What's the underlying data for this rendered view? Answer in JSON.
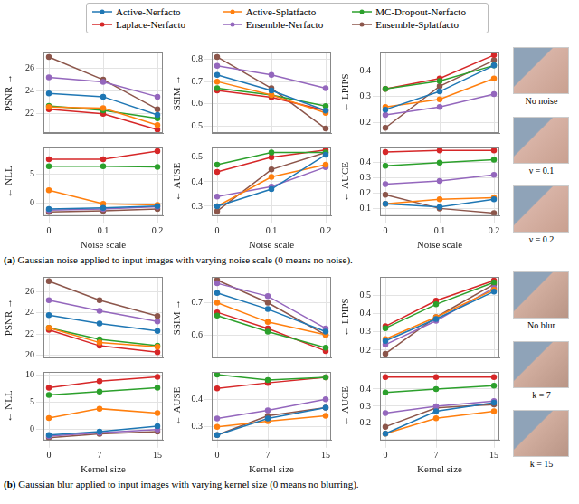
{
  "chart_data": [
    {
      "type": "line",
      "y_label": "PSNR →",
      "x": [
        0,
        0.1,
        0.2
      ],
      "xlim": [
        -0.01,
        0.21
      ],
      "xticks": [
        0,
        0.1,
        0.2
      ],
      "ylim": [
        20.3,
        27.4
      ],
      "yticks": [
        22,
        24,
        26
      ],
      "grid": true,
      "marker": "circle",
      "tick_labels": "y",
      "legend": "top",
      "series": [
        {
          "name": "Active-Nerfacto",
          "color": "#1f77b4",
          "values": [
            23.8,
            23.5,
            21.9
          ]
        },
        {
          "name": "Active-Splatfacto",
          "color": "#ff7f0e",
          "values": [
            22.6,
            22.5,
            21.0
          ]
        },
        {
          "name": "MC-Dropout-Nerfacto",
          "color": "#2ca02c",
          "values": [
            22.7,
            22.3,
            21.6
          ]
        },
        {
          "name": "Laplace-Nerfacto",
          "color": "#d62728",
          "values": [
            22.4,
            22.0,
            20.6
          ]
        },
        {
          "name": "Ensemble-Nerfacto",
          "color": "#9467bd",
          "values": [
            25.2,
            24.8,
            23.5
          ]
        },
        {
          "name": "Ensemble-Splatfacto",
          "color": "#8c564b",
          "values": [
            27.0,
            25.0,
            22.4
          ]
        }
      ]
    },
    {
      "type": "line",
      "y_label": "SSIM →",
      "x": [
        0,
        0.1,
        0.2
      ],
      "xlim": [
        -0.01,
        0.21
      ],
      "xticks": [
        0,
        0.1,
        0.2
      ],
      "ylim": [
        0.47,
        0.83
      ],
      "yticks": [
        0.5,
        0.6,
        0.7,
        0.8
      ],
      "grid": true,
      "marker": "circle",
      "tick_labels": "y",
      "series": [
        {
          "name": "Active-Nerfacto",
          "color": "#1f77b4",
          "values": [
            0.73,
            0.66,
            0.57
          ]
        },
        {
          "name": "Active-Splatfacto",
          "color": "#ff7f0e",
          "values": [
            0.7,
            0.64,
            0.56
          ]
        },
        {
          "name": "MC-Dropout-Nerfacto",
          "color": "#2ca02c",
          "values": [
            0.67,
            0.64,
            0.59
          ]
        },
        {
          "name": "Laplace-Nerfacto",
          "color": "#d62728",
          "values": [
            0.66,
            0.63,
            0.57
          ]
        },
        {
          "name": "Ensemble-Nerfacto",
          "color": "#9467bd",
          "values": [
            0.77,
            0.73,
            0.67
          ]
        },
        {
          "name": "Ensemble-Splatfacto",
          "color": "#8c564b",
          "values": [
            0.81,
            0.67,
            0.49
          ]
        }
      ]
    },
    {
      "type": "line",
      "y_label": "← LPIPS",
      "x": [
        0,
        0.1,
        0.2
      ],
      "xlim": [
        -0.01,
        0.21
      ],
      "xticks": [
        0,
        0.1,
        0.2
      ],
      "ylim": [
        0.16,
        0.47
      ],
      "yticks": [
        0.2,
        0.3,
        0.4
      ],
      "grid": true,
      "marker": "circle",
      "tick_labels": "y",
      "series": [
        {
          "name": "Active-Nerfacto",
          "color": "#1f77b4",
          "values": [
            0.25,
            0.32,
            0.42
          ]
        },
        {
          "name": "Active-Splatfacto",
          "color": "#ff7f0e",
          "values": [
            0.26,
            0.29,
            0.37
          ]
        },
        {
          "name": "MC-Dropout-Nerfacto",
          "color": "#2ca02c",
          "values": [
            0.33,
            0.36,
            0.42
          ]
        },
        {
          "name": "Laplace-Nerfacto",
          "color": "#d62728",
          "values": [
            0.33,
            0.37,
            0.46
          ]
        },
        {
          "name": "Ensemble-Nerfacto",
          "color": "#9467bd",
          "values": [
            0.23,
            0.26,
            0.31
          ]
        },
        {
          "name": "Ensemble-Splatfacto",
          "color": "#8c564b",
          "values": [
            0.18,
            0.34,
            0.44
          ]
        }
      ]
    },
    {
      "type": "line",
      "y_label": "← NLL",
      "x_label": "Noise scale",
      "x": [
        0,
        0.1,
        0.2
      ],
      "xlim": [
        -0.01,
        0.21
      ],
      "xticks": [
        0,
        0.1,
        0.2
      ],
      "ylim": [
        -2.2,
        9.5
      ],
      "yticks": [
        0,
        5
      ],
      "grid": true,
      "marker": "circle",
      "series": [
        {
          "name": "Active-Nerfacto",
          "color": "#1f77b4",
          "values": [
            -1.0,
            -0.8,
            -0.5
          ]
        },
        {
          "name": "Active-Splatfacto",
          "color": "#ff7f0e",
          "values": [
            2.2,
            -0.1,
            -0.3
          ]
        },
        {
          "name": "MC-Dropout-Nerfacto",
          "color": "#2ca02c",
          "values": [
            6.3,
            6.3,
            6.2
          ]
        },
        {
          "name": "Laplace-Nerfacto",
          "color": "#d62728",
          "values": [
            7.5,
            7.5,
            8.9
          ]
        },
        {
          "name": "Ensemble-Nerfacto",
          "color": "#9467bd",
          "values": [
            -1.2,
            -1.0,
            -0.6
          ]
        },
        {
          "name": "Ensemble-Splatfacto",
          "color": "#8c564b",
          "values": [
            -1.5,
            -1.3,
            -1.0
          ]
        }
      ]
    },
    {
      "type": "line",
      "y_label": "← AUSE",
      "x_label": "Noise scale",
      "x": [
        0,
        0.1,
        0.2
      ],
      "xlim": [
        -0.01,
        0.21
      ],
      "xticks": [
        0,
        0.1,
        0.2
      ],
      "ylim": [
        0.26,
        0.54
      ],
      "yticks": [
        0.3,
        0.4,
        0.5
      ],
      "grid": true,
      "marker": "circle",
      "series": [
        {
          "name": "Active-Nerfacto",
          "color": "#1f77b4",
          "values": [
            0.3,
            0.37,
            0.51
          ]
        },
        {
          "name": "Active-Splatfacto",
          "color": "#ff7f0e",
          "values": [
            0.3,
            0.42,
            0.47
          ]
        },
        {
          "name": "MC-Dropout-Nerfacto",
          "color": "#2ca02c",
          "values": [
            0.47,
            0.52,
            0.52
          ]
        },
        {
          "name": "Laplace-Nerfacto",
          "color": "#d62728",
          "values": [
            0.44,
            0.5,
            0.53
          ]
        },
        {
          "name": "Ensemble-Nerfacto",
          "color": "#9467bd",
          "values": [
            0.34,
            0.38,
            0.46
          ]
        },
        {
          "name": "Ensemble-Splatfacto",
          "color": "#8c564b",
          "values": [
            0.28,
            0.45,
            0.52
          ]
        }
      ]
    },
    {
      "type": "line",
      "y_label": "← AUCE",
      "x_label": "Noise scale",
      "x": [
        0,
        0.1,
        0.2
      ],
      "xlim": [
        -0.01,
        0.21
      ],
      "xticks": [
        0,
        0.1,
        0.2
      ],
      "ylim": [
        0.05,
        0.5
      ],
      "yticks": [
        0.1,
        0.2,
        0.3,
        0.4
      ],
      "grid": true,
      "marker": "circle",
      "series": [
        {
          "name": "Active-Nerfacto",
          "color": "#1f77b4",
          "values": [
            0.13,
            0.11,
            0.16
          ]
        },
        {
          "name": "Active-Splatfacto",
          "color": "#ff7f0e",
          "values": [
            0.13,
            0.16,
            0.17
          ]
        },
        {
          "name": "MC-Dropout-Nerfacto",
          "color": "#2ca02c",
          "values": [
            0.38,
            0.4,
            0.42
          ]
        },
        {
          "name": "Laplace-Nerfacto",
          "color": "#d62728",
          "values": [
            0.47,
            0.48,
            0.48
          ]
        },
        {
          "name": "Ensemble-Nerfacto",
          "color": "#9467bd",
          "values": [
            0.26,
            0.28,
            0.32
          ]
        },
        {
          "name": "Ensemble-Splatfacto",
          "color": "#8c564b",
          "values": [
            0.19,
            0.1,
            0.07
          ]
        }
      ]
    },
    {
      "type": "line",
      "y_label": "PSNR →",
      "x": [
        0,
        7,
        15
      ],
      "xlim": [
        -0.75,
        15.75
      ],
      "xticks": [
        0,
        7,
        15
      ],
      "ylim": [
        19.8,
        27.4
      ],
      "yticks": [
        20,
        22,
        24,
        26
      ],
      "grid": true,
      "marker": "circle",
      "tick_labels": "y",
      "series": [
        {
          "name": "Active-Nerfacto",
          "color": "#1f77b4",
          "values": [
            23.8,
            23.0,
            22.3
          ]
        },
        {
          "name": "Active-Splatfacto",
          "color": "#ff7f0e",
          "values": [
            22.6,
            21.2,
            20.8
          ]
        },
        {
          "name": "MC-Dropout-Nerfacto",
          "color": "#2ca02c",
          "values": [
            22.6,
            21.5,
            20.9
          ]
        },
        {
          "name": "Laplace-Nerfacto",
          "color": "#d62728",
          "values": [
            22.4,
            20.9,
            20.3
          ]
        },
        {
          "name": "Ensemble-Nerfacto",
          "color": "#9467bd",
          "values": [
            25.2,
            24.2,
            23.2
          ]
        },
        {
          "name": "Ensemble-Splatfacto",
          "color": "#8c564b",
          "values": [
            27.0,
            25.2,
            23.7
          ]
        }
      ]
    },
    {
      "type": "line",
      "y_label": "SSIM →",
      "x": [
        0,
        7,
        15
      ],
      "xlim": [
        -0.75,
        15.75
      ],
      "xticks": [
        0,
        7,
        15
      ],
      "ylim": [
        0.53,
        0.78
      ],
      "yticks": [
        0.6,
        0.7
      ],
      "grid": true,
      "marker": "circle",
      "tick_labels": "y",
      "series": [
        {
          "name": "Active-Nerfacto",
          "color": "#1f77b4",
          "values": [
            0.73,
            0.68,
            0.61
          ]
        },
        {
          "name": "Active-Splatfacto",
          "color": "#ff7f0e",
          "values": [
            0.7,
            0.64,
            0.6
          ]
        },
        {
          "name": "MC-Dropout-Nerfacto",
          "color": "#2ca02c",
          "values": [
            0.66,
            0.61,
            0.56
          ]
        },
        {
          "name": "Laplace-Nerfacto",
          "color": "#d62728",
          "values": [
            0.67,
            0.62,
            0.55
          ]
        },
        {
          "name": "Ensemble-Nerfacto",
          "color": "#9467bd",
          "values": [
            0.76,
            0.72,
            0.62
          ]
        },
        {
          "name": "Ensemble-Splatfacto",
          "color": "#8c564b",
          "values": [
            0.77,
            0.7,
            0.6
          ]
        }
      ]
    },
    {
      "type": "line",
      "y_label": "← LPIPS",
      "x": [
        0,
        7,
        15
      ],
      "xlim": [
        -0.75,
        15.75
      ],
      "xticks": [
        0,
        7,
        15
      ],
      "ylim": [
        0.16,
        0.6
      ],
      "yticks": [
        0.2,
        0.3,
        0.4,
        0.5
      ],
      "grid": true,
      "marker": "circle",
      "tick_labels": "y",
      "series": [
        {
          "name": "Active-Nerfacto",
          "color": "#1f77b4",
          "values": [
            0.25,
            0.37,
            0.52
          ]
        },
        {
          "name": "Active-Splatfacto",
          "color": "#ff7f0e",
          "values": [
            0.26,
            0.38,
            0.53
          ]
        },
        {
          "name": "MC-Dropout-Nerfacto",
          "color": "#2ca02c",
          "values": [
            0.32,
            0.45,
            0.57
          ]
        },
        {
          "name": "Laplace-Nerfacto",
          "color": "#d62728",
          "values": [
            0.33,
            0.47,
            0.58
          ]
        },
        {
          "name": "Ensemble-Nerfacto",
          "color": "#9467bd",
          "values": [
            0.23,
            0.36,
            0.54
          ]
        },
        {
          "name": "Ensemble-Splatfacto",
          "color": "#8c564b",
          "values": [
            0.18,
            0.38,
            0.56
          ]
        }
      ]
    },
    {
      "type": "line",
      "y_label": "← NLL",
      "x_label": "Kernel size",
      "x": [
        0,
        7,
        15
      ],
      "xlim": [
        -0.75,
        15.75
      ],
      "xticks": [
        0,
        7,
        15
      ],
      "ylim": [
        -2.0,
        10.5
      ],
      "yticks": [
        0,
        5,
        10
      ],
      "grid": true,
      "marker": "circle",
      "series": [
        {
          "name": "Active-Nerfacto",
          "color": "#1f77b4",
          "values": [
            -1.0,
            -0.4,
            0.6
          ]
        },
        {
          "name": "Active-Splatfacto",
          "color": "#ff7f0e",
          "values": [
            2.1,
            3.8,
            3.0
          ]
        },
        {
          "name": "MC-Dropout-Nerfacto",
          "color": "#2ca02c",
          "values": [
            6.3,
            6.9,
            7.6
          ]
        },
        {
          "name": "Laplace-Nerfacto",
          "color": "#d62728",
          "values": [
            7.6,
            8.8,
            9.6
          ]
        },
        {
          "name": "Ensemble-Nerfacto",
          "color": "#9467bd",
          "values": [
            -1.2,
            -0.6,
            0.0
          ]
        },
        {
          "name": "Ensemble-Splatfacto",
          "color": "#8c564b",
          "values": [
            -1.5,
            -0.8,
            -0.4
          ]
        }
      ]
    },
    {
      "type": "line",
      "y_label": "← AUSE",
      "x_label": "Kernel size",
      "x": [
        0,
        7,
        15
      ],
      "xlim": [
        -0.75,
        15.75
      ],
      "xticks": [
        0,
        7,
        15
      ],
      "ylim": [
        0.25,
        0.5
      ],
      "yticks": [
        0.3,
        0.4
      ],
      "grid": true,
      "marker": "circle",
      "series": [
        {
          "name": "Active-Nerfacto",
          "color": "#1f77b4",
          "values": [
            0.27,
            0.33,
            0.37
          ]
        },
        {
          "name": "Active-Splatfacto",
          "color": "#ff7f0e",
          "values": [
            0.3,
            0.32,
            0.34
          ]
        },
        {
          "name": "MC-Dropout-Nerfacto",
          "color": "#2ca02c",
          "values": [
            0.49,
            0.47,
            0.48
          ]
        },
        {
          "name": "Laplace-Nerfacto",
          "color": "#d62728",
          "values": [
            0.44,
            0.46,
            0.48
          ]
        },
        {
          "name": "Ensemble-Nerfacto",
          "color": "#9467bd",
          "values": [
            0.33,
            0.36,
            0.4
          ]
        },
        {
          "name": "Ensemble-Splatfacto",
          "color": "#8c564b",
          "values": [
            0.27,
            0.34,
            0.37
          ]
        }
      ]
    },
    {
      "type": "line",
      "y_label": "← AUCE",
      "x_label": "Kernel size",
      "x": [
        0,
        7,
        15
      ],
      "xlim": [
        -0.75,
        15.75
      ],
      "xticks": [
        0,
        7,
        15
      ],
      "ylim": [
        0.1,
        0.5
      ],
      "yticks": [
        0.2,
        0.3,
        0.4
      ],
      "grid": true,
      "marker": "circle",
      "series": [
        {
          "name": "Active-Nerfacto",
          "color": "#1f77b4",
          "values": [
            0.14,
            0.27,
            0.32
          ]
        },
        {
          "name": "Active-Splatfacto",
          "color": "#ff7f0e",
          "values": [
            0.14,
            0.23,
            0.27
          ]
        },
        {
          "name": "MC-Dropout-Nerfacto",
          "color": "#2ca02c",
          "values": [
            0.38,
            0.4,
            0.42
          ]
        },
        {
          "name": "Laplace-Nerfacto",
          "color": "#d62728",
          "values": [
            0.47,
            0.47,
            0.47
          ]
        },
        {
          "name": "Ensemble-Nerfacto",
          "color": "#9467bd",
          "values": [
            0.26,
            0.3,
            0.33
          ]
        },
        {
          "name": "Ensemble-Splatfacto",
          "color": "#8c564b",
          "values": [
            0.18,
            0.29,
            0.31
          ]
        }
      ]
    }
  ],
  "panels": [
    {
      "tag": "(a)",
      "caption": "Gaussian noise applied to input images with varying noise scale (0 means no noise).",
      "thumbnails": [
        "No noise",
        "ν = 0.1",
        "ν = 0.2"
      ]
    },
    {
      "tag": "(b)",
      "caption": "Gaussian blur applied to input images with varying kernel size (0 means no blurring).",
      "thumbnails": [
        "No blur",
        "k = 7",
        "k = 15"
      ]
    }
  ]
}
